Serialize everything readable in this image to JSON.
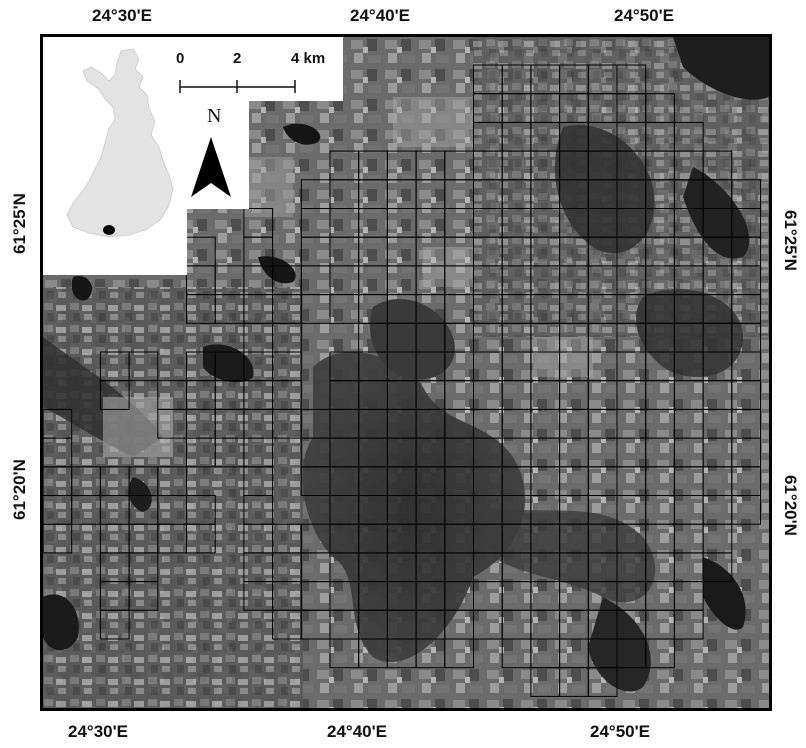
{
  "top_labels": [
    "24°30'E",
    "24°40'E",
    "24°50'E"
  ],
  "bottom_labels": [
    "24°30'E",
    "24°40'E",
    "24°50'E"
  ],
  "left_labels": [
    "61°25'N",
    "61°20'N"
  ],
  "right_labels": [
    "61°25'N",
    "61°20'N"
  ],
  "scale_bar": {
    "labels": [
      "0",
      "2",
      "4 km"
    ]
  },
  "north_arrow": {
    "label": "N",
    "icon": "north-arrow-icon"
  },
  "inset": {
    "icon": "finland-outline-icon",
    "marker_color": "#000000",
    "land_color": "#e3e3e3"
  },
  "colors": {
    "frame": "#000000",
    "grid": "#000000",
    "water": "#1a1a1a"
  }
}
